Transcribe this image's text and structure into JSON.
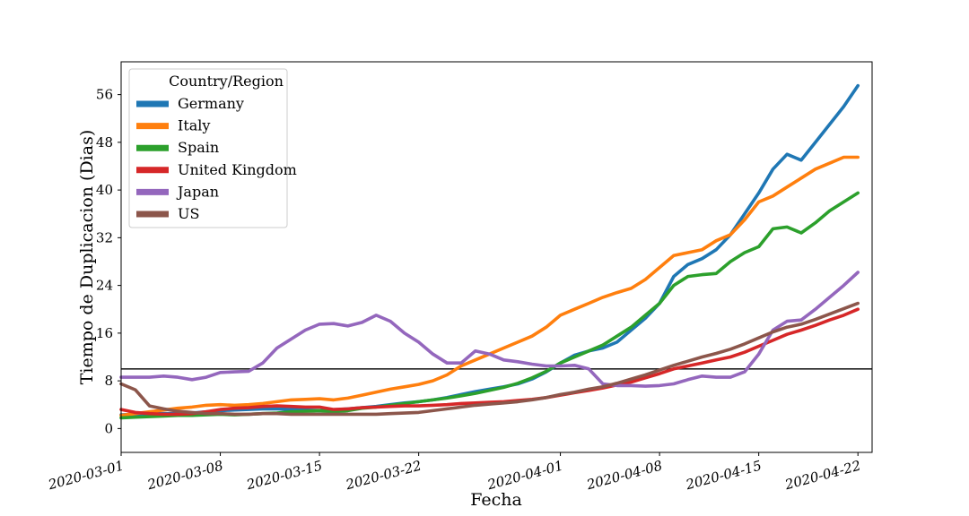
{
  "chart_data": {
    "type": "line",
    "xlabel": "Fecha",
    "ylabel": "Tiempo de Duplicacion (Dias)",
    "x_tick_labels": [
      "2020-03-01",
      "2020-03-08",
      "2020-03-15",
      "2020-03-22",
      "2020-04-01",
      "2020-04-08",
      "2020-04-15",
      "2020-04-22"
    ],
    "y_ticks": [
      0,
      8,
      16,
      24,
      32,
      40,
      48,
      56
    ],
    "xlim": [
      "2020-03-01",
      "2020-04-23"
    ],
    "ylim": [
      -4,
      61.5
    ],
    "reference_line": 10,
    "legend": {
      "title": "Country/Region",
      "position": "upper-left"
    },
    "dates": [
      "2020-03-01",
      "2020-03-02",
      "2020-03-03",
      "2020-03-04",
      "2020-03-05",
      "2020-03-06",
      "2020-03-07",
      "2020-03-08",
      "2020-03-09",
      "2020-03-10",
      "2020-03-11",
      "2020-03-12",
      "2020-03-13",
      "2020-03-14",
      "2020-03-15",
      "2020-03-16",
      "2020-03-17",
      "2020-03-18",
      "2020-03-19",
      "2020-03-20",
      "2020-03-21",
      "2020-03-22",
      "2020-03-23",
      "2020-03-24",
      "2020-03-25",
      "2020-03-26",
      "2020-03-27",
      "2020-03-28",
      "2020-03-29",
      "2020-03-30",
      "2020-03-31",
      "2020-04-01",
      "2020-04-02",
      "2020-04-03",
      "2020-04-04",
      "2020-04-05",
      "2020-04-06",
      "2020-04-07",
      "2020-04-08",
      "2020-04-09",
      "2020-04-10",
      "2020-04-11",
      "2020-04-12",
      "2020-04-13",
      "2020-04-14",
      "2020-04-15",
      "2020-04-16",
      "2020-04-17",
      "2020-04-18",
      "2020-04-19",
      "2020-04-20",
      "2020-04-21",
      "2020-04-22"
    ],
    "series": [
      {
        "name": "Germany",
        "color": "#1f77b4",
        "values": [
          2.3,
          2.4,
          2.5,
          2.5,
          2.5,
          2.6,
          2.8,
          3.0,
          3.1,
          3.2,
          3.3,
          3.3,
          3.2,
          3.1,
          3.0,
          3.1,
          3.3,
          3.5,
          3.7,
          4.0,
          4.3,
          4.5,
          4.8,
          5.2,
          5.7,
          6.2,
          6.6,
          7.0,
          7.5,
          8.3,
          9.5,
          11.0,
          12.3,
          13.0,
          13.5,
          14.5,
          16.5,
          18.5,
          21.0,
          25.5,
          27.5,
          28.5,
          30.0,
          32.5,
          36.0,
          39.5,
          43.5,
          46.0,
          45.0,
          48.0,
          51.0,
          54.0,
          57.5
        ]
      },
      {
        "name": "Italy",
        "color": "#ff7f0e",
        "values": [
          2.2,
          2.5,
          2.8,
          3.1,
          3.4,
          3.6,
          3.9,
          4.0,
          3.9,
          4.0,
          4.2,
          4.5,
          4.8,
          4.9,
          5.0,
          4.8,
          5.1,
          5.6,
          6.1,
          6.6,
          7.0,
          7.4,
          8.0,
          9.0,
          10.5,
          11.5,
          12.5,
          13.5,
          14.5,
          15.5,
          17.0,
          19.0,
          20.0,
          21.0,
          22.0,
          22.8,
          23.5,
          25.0,
          27.0,
          29.0,
          29.5,
          30.0,
          31.5,
          32.5,
          35.0,
          38.0,
          39.0,
          40.5,
          42.0,
          43.5,
          44.5,
          45.5,
          45.5
        ]
      },
      {
        "name": "Spain",
        "color": "#2ca02c",
        "values": [
          1.8,
          1.9,
          2.0,
          2.1,
          2.2,
          2.2,
          2.3,
          2.4,
          2.3,
          2.4,
          2.5,
          2.6,
          2.8,
          2.9,
          3.0,
          2.8,
          3.0,
          3.4,
          3.6,
          3.9,
          4.2,
          4.5,
          4.8,
          5.1,
          5.5,
          5.9,
          6.4,
          6.9,
          7.6,
          8.5,
          9.6,
          11.0,
          12.0,
          13.0,
          14.0,
          15.5,
          17.0,
          19.0,
          21.0,
          24.0,
          25.5,
          25.8,
          26.0,
          28.0,
          29.5,
          30.5,
          33.5,
          33.8,
          32.8,
          34.5,
          36.5,
          38.0,
          39.5
        ]
      },
      {
        "name": "United Kingdom",
        "color": "#d62728",
        "values": [
          3.2,
          2.7,
          2.5,
          2.4,
          2.4,
          2.5,
          2.8,
          3.2,
          3.4,
          3.5,
          3.7,
          3.8,
          3.7,
          3.6,
          3.6,
          3.2,
          3.3,
          3.5,
          3.6,
          3.7,
          3.8,
          3.8,
          3.9,
          4.0,
          4.2,
          4.3,
          4.4,
          4.5,
          4.7,
          4.9,
          5.2,
          5.6,
          6.0,
          6.4,
          6.8,
          7.3,
          7.8,
          8.5,
          9.2,
          10.0,
          10.5,
          11.0,
          11.5,
          12.0,
          12.8,
          13.8,
          14.8,
          15.8,
          16.5,
          17.3,
          18.2,
          19.0,
          20.0
        ]
      },
      {
        "name": "Japan",
        "color": "#9467bd",
        "values": [
          8.6,
          8.6,
          8.6,
          8.8,
          8.6,
          8.2,
          8.6,
          9.4,
          9.5,
          9.6,
          11.0,
          13.5,
          15.0,
          16.5,
          17.5,
          17.6,
          17.2,
          17.8,
          19.0,
          18.0,
          16.0,
          14.5,
          12.5,
          11.0,
          11.0,
          13.0,
          12.5,
          11.5,
          11.2,
          10.8,
          10.5,
          10.5,
          10.6,
          10.0,
          7.5,
          7.2,
          7.2,
          7.1,
          7.2,
          7.5,
          8.2,
          8.8,
          8.6,
          8.6,
          9.5,
          12.5,
          16.5,
          18.0,
          18.2,
          20.0,
          22.0,
          24.0,
          26.2
        ]
      },
      {
        "name": "US",
        "color": "#8c564b",
        "values": [
          7.5,
          6.5,
          3.8,
          3.3,
          2.9,
          2.7,
          2.5,
          2.5,
          2.4,
          2.4,
          2.5,
          2.5,
          2.4,
          2.4,
          2.4,
          2.4,
          2.4,
          2.4,
          2.4,
          2.5,
          2.6,
          2.7,
          3.0,
          3.3,
          3.6,
          3.9,
          4.1,
          4.3,
          4.5,
          4.8,
          5.2,
          5.7,
          6.1,
          6.6,
          7.0,
          7.6,
          8.3,
          9.0,
          9.8,
          10.6,
          11.3,
          12.0,
          12.6,
          13.3,
          14.2,
          15.2,
          16.2,
          17.0,
          17.5,
          18.3,
          19.2,
          20.1,
          21.0
        ]
      }
    ]
  }
}
